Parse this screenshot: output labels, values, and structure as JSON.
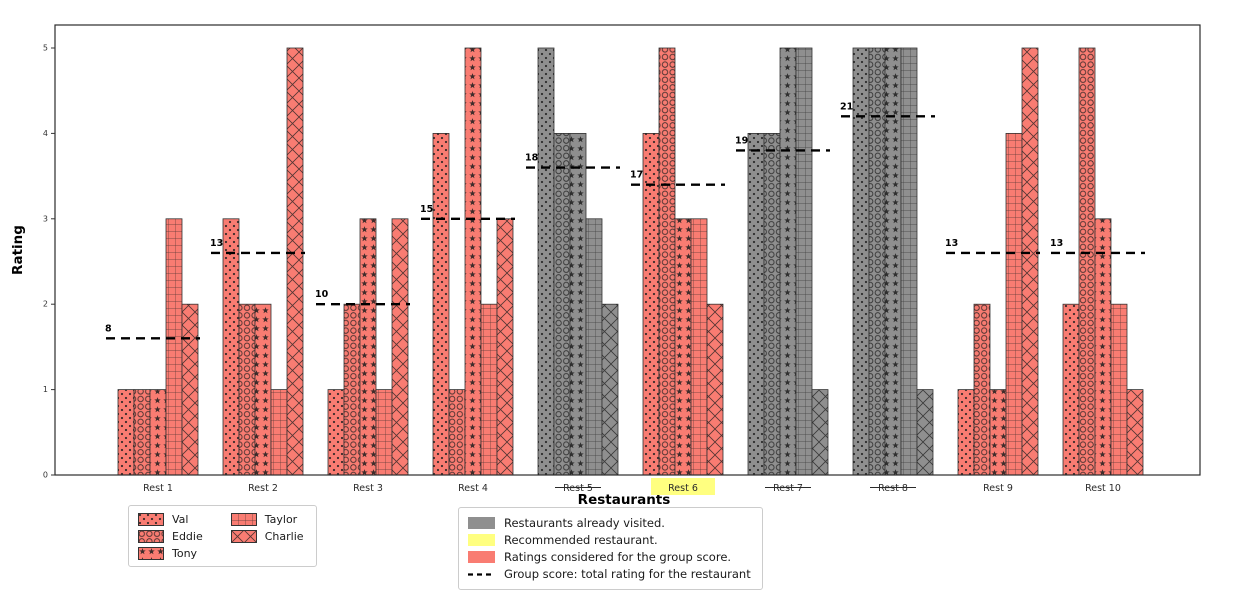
{
  "chart_data": {
    "type": "bar",
    "title": "",
    "xlabel": "Restaurants",
    "ylabel": "Rating",
    "ylim": [
      0,
      5
    ],
    "yticks": [
      0,
      1,
      2,
      3,
      4,
      5
    ],
    "grid": false,
    "legend_position": "below",
    "categories": [
      "Rest 1",
      "Rest 2",
      "Rest 3",
      "Rest 4",
      "Rest 5",
      "Rest 6",
      "Rest 7",
      "Rest 8",
      "Rest 9",
      "Rest 10"
    ],
    "series": [
      {
        "name": "Val",
        "hatch": "dots",
        "values": [
          1,
          3,
          1,
          4,
          5,
          4,
          4,
          5,
          1,
          2
        ]
      },
      {
        "name": "Eddie",
        "hatch": "circles",
        "values": [
          1,
          2,
          2,
          1,
          4,
          5,
          4,
          5,
          2,
          5
        ]
      },
      {
        "name": "Tony",
        "hatch": "stars",
        "values": [
          1,
          2,
          3,
          5,
          4,
          3,
          5,
          5,
          1,
          3
        ]
      },
      {
        "name": "Taylor",
        "hatch": "grid",
        "values": [
          3,
          1,
          1,
          2,
          3,
          3,
          5,
          5,
          4,
          2
        ]
      },
      {
        "name": "Charlie",
        "hatch": "cross",
        "values": [
          2,
          5,
          3,
          3,
          2,
          2,
          1,
          1,
          5,
          1
        ]
      }
    ],
    "group_scores": [
      8,
      13,
      10,
      15,
      18,
      17,
      19,
      21,
      13,
      13
    ],
    "visited": [
      "Rest 5",
      "Rest 7",
      "Rest 8"
    ],
    "recommended": "Rest 6",
    "colors": {
      "active": "#f97c72",
      "visited": "#8f8f8f",
      "highlight": "#ffff80",
      "edge": "#333333",
      "hatch": "#1f1f1f",
      "score_line": "#000000"
    }
  },
  "legend_status": {
    "items": [
      {
        "name": "legend-visited",
        "type": "patch",
        "color": "#8f8f8f",
        "label": "Restaurants already visited."
      },
      {
        "name": "legend-recommended",
        "type": "patch",
        "color": "#ffff80",
        "label": "Recommended restaurant."
      },
      {
        "name": "legend-considered",
        "type": "patch",
        "color": "#f97c72",
        "label": "Ratings considered for the group score."
      },
      {
        "name": "legend-group-score",
        "type": "line",
        "color": "#000000",
        "label": "Group score: total rating for the restaurant"
      }
    ]
  }
}
